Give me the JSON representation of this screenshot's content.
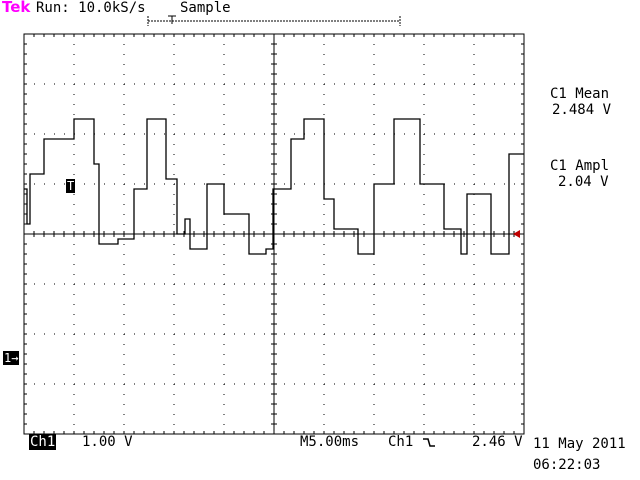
{
  "header": {
    "brand": "Tek",
    "run_status": "Run: 10.0kS/s",
    "acquisition_mode": "Sample",
    "brand_color": "#ff00ff"
  },
  "measurements": [
    {
      "label": "C1 Mean",
      "value": "2.484 V"
    },
    {
      "label": "C1 Ampl",
      "value": "2.04 V"
    }
  ],
  "markers": {
    "channel_marker": "1→",
    "trigger_marker": "T"
  },
  "footer": {
    "channel": "Ch1",
    "volts_per_div": "1.00 V",
    "timebase": "M5.00ms",
    "trigger_source": "Ch1",
    "trigger_slope_icon": "falling-edge-icon",
    "trigger_level": "2.46 V",
    "date": "11 May 2011",
    "time": "06:22:03"
  },
  "chart_data": {
    "type": "line",
    "x_unit": "ms",
    "y_unit": "V",
    "xlim": [
      0,
      50
    ],
    "ylim": [
      -2.4,
      5.6
    ],
    "grid": true,
    "series": [
      {
        "x": [
          0,
          0.3,
          0.3,
          0.6,
          0.6,
          2.0,
          2.0,
          5.0,
          5.0,
          7.0,
          7.0,
          7.5,
          7.5,
          9.4,
          9.4,
          11.0,
          11.0,
          12.3,
          12.3,
          14.2,
          14.2,
          15.3,
          15.3,
          16.1,
          16.1,
          16.6,
          16.6,
          18.3,
          18.3,
          20.0,
          20.0,
          22.5,
          22.5,
          24.2,
          24.2,
          24.9,
          24.9,
          26.7,
          26.7,
          28.0,
          28.0,
          30.0,
          30.0,
          31.0,
          31.0,
          33.4,
          33.4,
          35.0,
          35.0,
          37.0,
          37.0,
          39.6,
          39.6,
          42.0,
          42.0,
          43.7,
          43.7,
          44.3,
          44.3,
          46.7,
          46.7,
          48.5,
          48.5,
          50
        ],
        "y": [
          2.5,
          2.5,
          1.8,
          1.8,
          2.8,
          2.8,
          3.5,
          3.5,
          3.9,
          3.9,
          3.0,
          3.0,
          1.4,
          1.4,
          1.5,
          1.5,
          2.5,
          2.5,
          3.9,
          3.9,
          2.7,
          2.7,
          1.6,
          1.6,
          1.9,
          1.9,
          1.3,
          1.3,
          2.6,
          2.6,
          2.0,
          2.0,
          1.2,
          1.2,
          1.3,
          1.3,
          2.5,
          2.5,
          3.5,
          3.5,
          3.9,
          3.9,
          2.3,
          2.3,
          1.7,
          1.7,
          1.2,
          1.2,
          2.6,
          2.6,
          3.9,
          3.9,
          2.6,
          2.6,
          1.7,
          1.7,
          1.2,
          1.2,
          2.4,
          2.4,
          1.2,
          1.2,
          3.2,
          3.2
        ]
      }
    ]
  }
}
